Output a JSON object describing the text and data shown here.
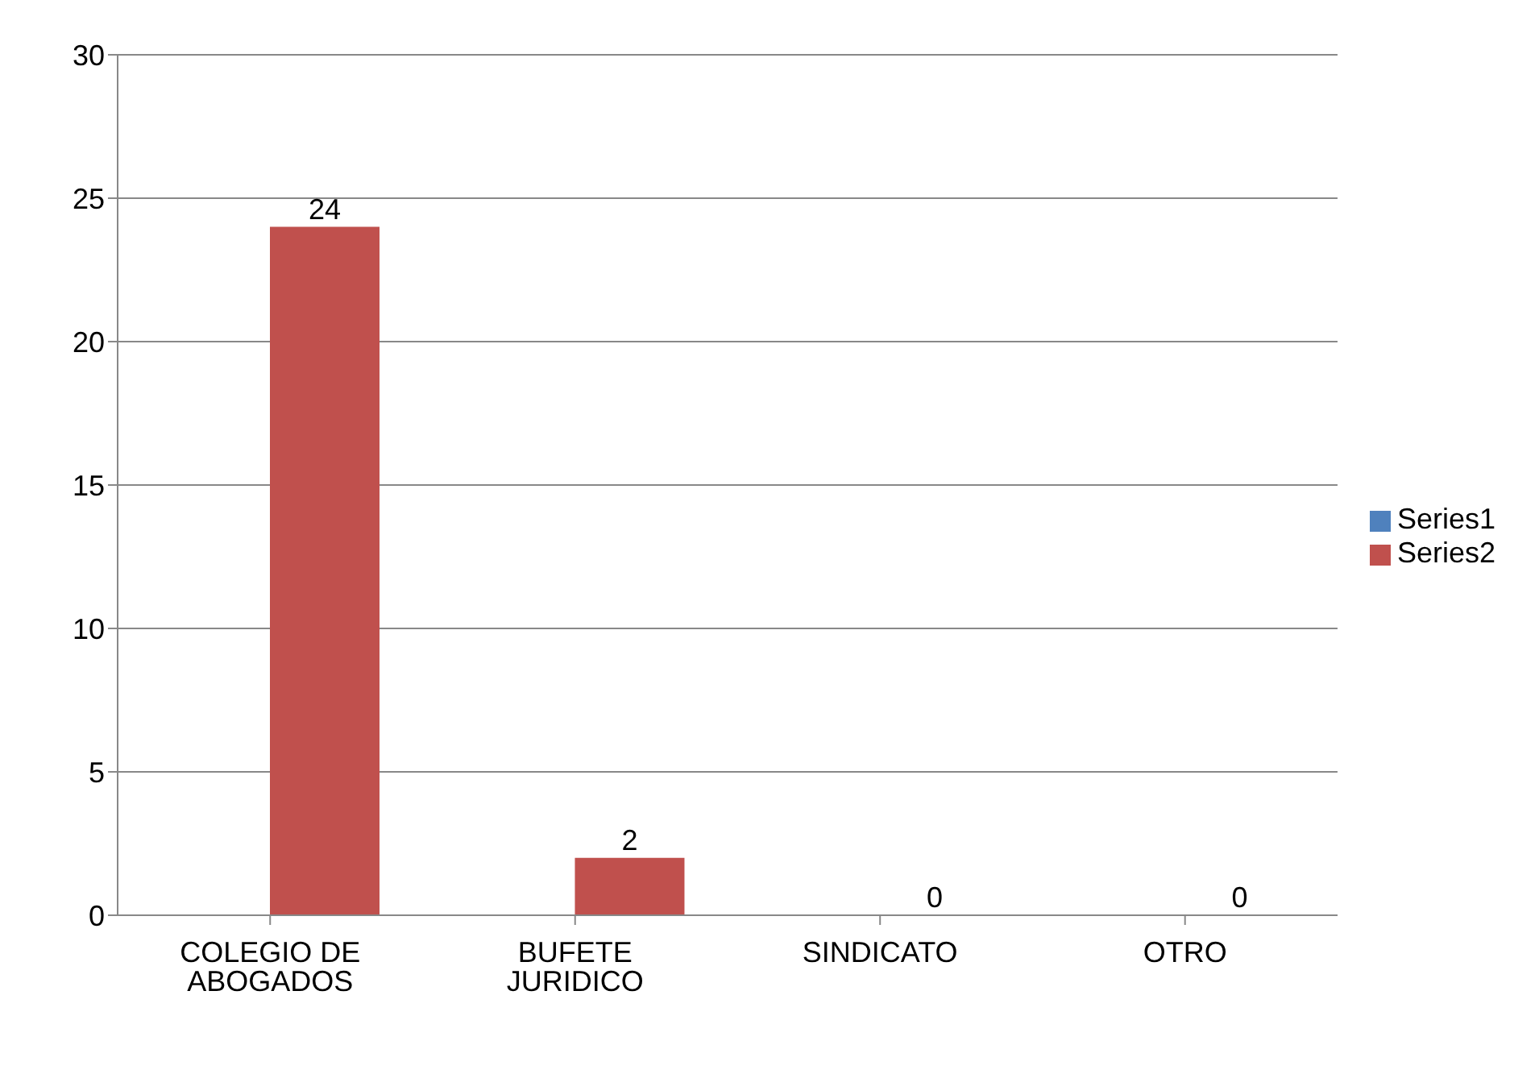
{
  "chart_data": {
    "type": "bar",
    "categories": [
      "COLEGIO DE ABOGADOS",
      "BUFETE JURIDICO",
      "SINDICATO",
      "OTRO"
    ],
    "series": [
      {
        "name": "Series1",
        "color": "#4f81bd",
        "values": [
          null,
          null,
          null,
          null
        ]
      },
      {
        "name": "Series2",
        "color": "#c0504d",
        "values": [
          24,
          2,
          0,
          0
        ],
        "value_labels": [
          "24",
          "2",
          "0",
          "0"
        ]
      }
    ],
    "ylim": [
      0,
      30
    ],
    "yticks": [
      0,
      5,
      10,
      15,
      20,
      25,
      30
    ],
    "grid": "y",
    "legend": "right"
  }
}
